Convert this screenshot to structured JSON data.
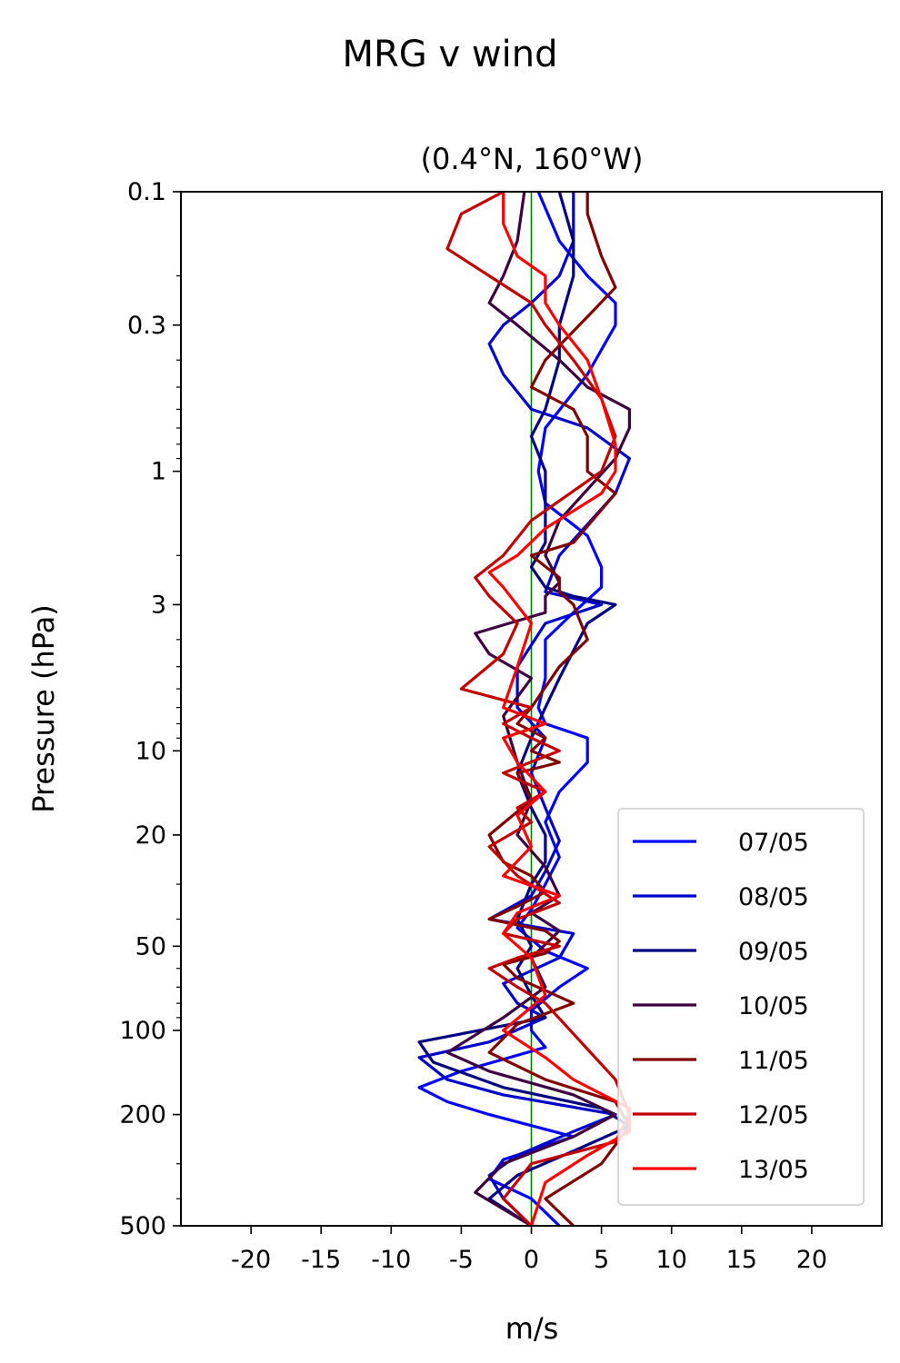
{
  "chart_data": {
    "type": "line",
    "title": "MRG v wind",
    "subtitle": "(0.4°N, 160°W)",
    "xlabel": "m/s",
    "ylabel": "Pressure (hPa)",
    "xlim": [
      -25,
      25
    ],
    "ylim": [
      500,
      0.1
    ],
    "yscale": "log",
    "x_ticks": [
      -20,
      -15,
      -10,
      -5,
      0,
      5,
      10,
      15,
      20
    ],
    "y_ticks": [
      0.1,
      0.3,
      1,
      3,
      10,
      20,
      50,
      100,
      200,
      500
    ],
    "y_tick_labels": [
      "0.1",
      "0.3",
      "1",
      "3",
      "10",
      "20",
      "50",
      "100",
      "200",
      "500"
    ],
    "reference_line": {
      "x": 0,
      "color": "#008000"
    },
    "legend_position": "lower-right",
    "series": [
      {
        "name": "07/05",
        "color": "#0000ff",
        "x": [
          0.5,
          2,
          4,
          6,
          6,
          4,
          1,
          0.5,
          1,
          4,
          5,
          5,
          3,
          1,
          1,
          0.5,
          1,
          4,
          4,
          2,
          1,
          2,
          1,
          0,
          -1,
          1,
          4,
          2,
          0,
          0,
          1,
          -5,
          -8,
          -6,
          -3,
          3,
          -2,
          -3,
          0,
          2
        ],
        "p": [
          0.1,
          0.15,
          0.2,
          0.25,
          0.3,
          0.45,
          0.7,
          1.0,
          1.3,
          1.7,
          2.2,
          2.6,
          3.2,
          4.0,
          5.5,
          7.0,
          8.0,
          9.0,
          11,
          14,
          18,
          24,
          30,
          37,
          43,
          52,
          60,
          70,
          85,
          100,
          115,
          140,
          160,
          180,
          200,
          240,
          290,
          340,
          400,
          500
        ]
      },
      {
        "name": "08/05",
        "color": "#0000cd",
        "x": [
          3,
          3,
          2,
          0,
          -2,
          -3,
          -2,
          0,
          4,
          7,
          6,
          2,
          1,
          5,
          1,
          -1,
          -1,
          1,
          0,
          1,
          2,
          1,
          0,
          -3,
          3,
          2,
          -2,
          -1,
          1,
          -3,
          -8,
          -6,
          -2,
          6,
          3,
          -1,
          -3,
          -2,
          0
        ],
        "p": [
          0.1,
          0.15,
          0.2,
          0.25,
          0.3,
          0.35,
          0.45,
          0.6,
          0.7,
          0.9,
          1.2,
          2.0,
          2.7,
          3.0,
          3.5,
          5.0,
          7.0,
          9.0,
          12,
          16,
          21,
          27,
          33,
          40,
          45,
          55,
          68,
          80,
          90,
          110,
          125,
          150,
          170,
          200,
          230,
          280,
          330,
          400,
          500
        ]
      },
      {
        "name": "09/05",
        "color": "#000080",
        "x": [
          2,
          3,
          3,
          2,
          2,
          1,
          0,
          1,
          1,
          1,
          0,
          1,
          3,
          6,
          4,
          2,
          1,
          0,
          -1,
          0,
          1,
          1,
          0,
          -1,
          0,
          -1,
          0,
          1,
          -8,
          -7,
          -2,
          5,
          7,
          3,
          -1,
          -3,
          0
        ],
        "p": [
          0.1,
          0.15,
          0.2,
          0.3,
          0.4,
          0.6,
          0.75,
          1.0,
          1.3,
          1.8,
          2.2,
          2.6,
          2.8,
          3.0,
          3.5,
          5.5,
          7.0,
          9.0,
          12,
          16,
          20,
          25,
          30,
          40,
          50,
          60,
          75,
          90,
          110,
          130,
          160,
          190,
          220,
          270,
          330,
          400,
          500
        ]
      },
      {
        "name": "10/05",
        "color": "#3d0040",
        "x": [
          -0.5,
          -1,
          -2,
          -3,
          -1,
          2,
          4,
          7,
          7,
          6,
          2,
          1,
          2,
          1,
          1,
          -4,
          -3,
          0,
          -2,
          -1,
          0,
          -1,
          1,
          2,
          0,
          2,
          0,
          1,
          -2,
          -6,
          -3,
          3,
          6,
          3,
          -2,
          -4,
          0
        ],
        "p": [
          0.1,
          0.15,
          0.2,
          0.25,
          0.3,
          0.4,
          0.5,
          0.6,
          0.7,
          0.9,
          1.5,
          2.0,
          2.5,
          2.8,
          3.2,
          3.8,
          4.5,
          5.5,
          7.5,
          11,
          15,
          20,
          26,
          33,
          38,
          44,
          55,
          70,
          90,
          120,
          140,
          170,
          200,
          240,
          300,
          380,
          500
        ]
      },
      {
        "name": "11/05",
        "color": "#800000",
        "x": [
          4,
          4,
          5,
          6,
          4,
          1,
          0,
          3,
          4,
          4,
          6,
          3,
          0,
          2,
          2,
          3,
          4,
          2,
          0,
          -1,
          1,
          0,
          2,
          -1,
          0,
          -3,
          -2,
          0,
          1,
          -1,
          -3,
          1,
          2,
          1,
          -2,
          -1,
          1,
          3,
          -1,
          -3,
          1,
          6,
          7,
          5,
          1,
          3
        ],
        "p": [
          0.1,
          0.12,
          0.17,
          0.22,
          0.28,
          0.4,
          0.5,
          0.6,
          0.75,
          1.0,
          1.2,
          1.8,
          2.0,
          2.4,
          2.7,
          3.0,
          4.0,
          5.0,
          7.0,
          8.0,
          9.0,
          10,
          11,
          12,
          15,
          20,
          25,
          28,
          32,
          36,
          40,
          44,
          48,
          53,
          58,
          65,
          72,
          80,
          95,
          120,
          150,
          180,
          220,
          300,
          400,
          500
        ]
      },
      {
        "name": "12/05",
        "color": "#c00000",
        "x": [
          -2,
          -5,
          -6,
          -3,
          0,
          1,
          3,
          5,
          6,
          5,
          0,
          -2,
          -4,
          -3,
          -1,
          -2,
          -5,
          0,
          -2,
          0,
          2,
          -2,
          1,
          -1,
          0,
          -3,
          -1,
          2,
          -1,
          -2,
          2,
          -1,
          -3,
          -1,
          1,
          6,
          7,
          6,
          0,
          -2,
          0
        ],
        "p": [
          0.1,
          0.12,
          0.16,
          0.2,
          0.25,
          0.3,
          0.4,
          0.55,
          0.75,
          1.0,
          1.5,
          2.0,
          2.4,
          2.8,
          3.5,
          4.5,
          6.0,
          7.0,
          8.0,
          9.0,
          10,
          12,
          14,
          16,
          18,
          22,
          28,
          35,
          40,
          45,
          50,
          55,
          60,
          70,
          80,
          150,
          200,
          250,
          300,
          400,
          500
        ]
      },
      {
        "name": "13/05",
        "color": "#ff0000",
        "x": [
          -2,
          -2,
          -1,
          1,
          1,
          2,
          4,
          5,
          6,
          6,
          5,
          1,
          -1,
          -3,
          -2,
          0,
          -1,
          -2,
          1,
          -2,
          -1,
          1,
          -1,
          0,
          -2,
          2,
          -1,
          -2,
          0,
          1,
          -2,
          1,
          3,
          7,
          7,
          4,
          1,
          0
        ],
        "p": [
          0.1,
          0.13,
          0.17,
          0.2,
          0.25,
          0.3,
          0.4,
          0.55,
          0.8,
          1.0,
          1.2,
          1.6,
          2.0,
          2.3,
          2.6,
          3.5,
          5.0,
          7.0,
          8.0,
          9.0,
          11,
          14,
          17,
          22,
          28,
          33,
          38,
          45,
          55,
          75,
          100,
          125,
          150,
          190,
          230,
          280,
          350,
          500
        ]
      }
    ]
  }
}
